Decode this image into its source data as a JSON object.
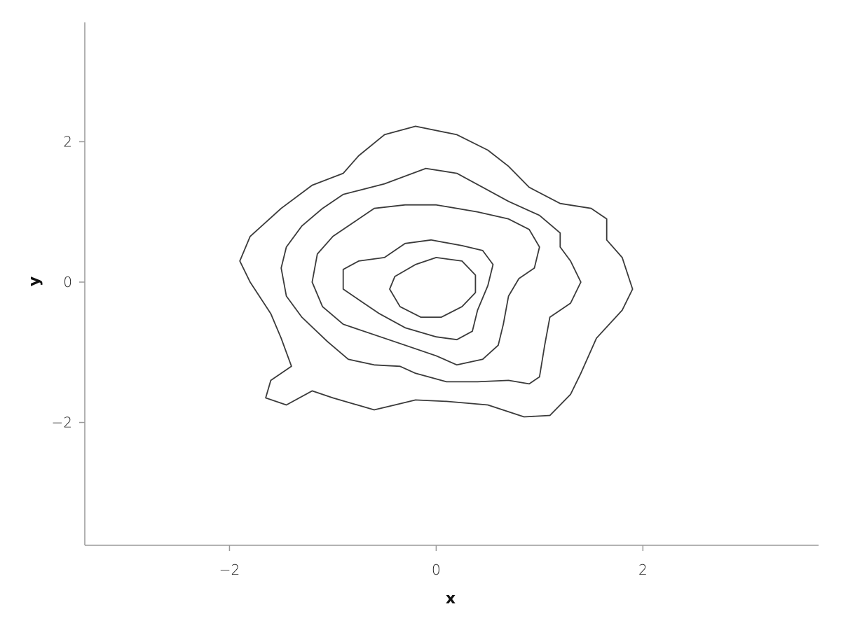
{
  "chart_data": {
    "type": "contour",
    "title": "",
    "xlabel": "x",
    "ylabel": "y",
    "xlim": [
      -3.4,
      3.7
    ],
    "ylim": [
      -3.75,
      3.7
    ],
    "x_ticks": [
      -2,
      0,
      2
    ],
    "x_tick_labels": [
      "−2",
      "0",
      "2"
    ],
    "y_ticks": [
      -2,
      0,
      2
    ],
    "y_tick_labels": [
      "−2",
      "0",
      "2"
    ],
    "grid": false,
    "legend": "none",
    "line_color": "#3a3a3a",
    "contours": [
      {
        "level_index": 1,
        "points": [
          [
            -0.2,
            2.22
          ],
          [
            -0.5,
            2.1
          ],
          [
            -0.75,
            1.8
          ],
          [
            -0.9,
            1.55
          ],
          [
            -1.2,
            1.38
          ],
          [
            -1.5,
            1.05
          ],
          [
            -1.8,
            0.65
          ],
          [
            -1.9,
            0.3
          ],
          [
            -1.8,
            0.0
          ],
          [
            -1.6,
            -0.45
          ],
          [
            -1.5,
            -0.8
          ],
          [
            -1.4,
            -1.2
          ],
          [
            -1.6,
            -1.4
          ],
          [
            -1.65,
            -1.65
          ],
          [
            -1.45,
            -1.75
          ],
          [
            -1.2,
            -1.55
          ],
          [
            -1.0,
            -1.65
          ],
          [
            -0.6,
            -1.82
          ],
          [
            -0.4,
            -1.75
          ],
          [
            -0.2,
            -1.68
          ],
          [
            0.1,
            -1.7
          ],
          [
            0.5,
            -1.75
          ],
          [
            0.85,
            -1.92
          ],
          [
            1.1,
            -1.9
          ],
          [
            1.3,
            -1.6
          ],
          [
            1.4,
            -1.3
          ],
          [
            1.55,
            -0.8
          ],
          [
            1.8,
            -0.4
          ],
          [
            1.9,
            -0.1
          ],
          [
            1.8,
            0.35
          ],
          [
            1.65,
            0.6
          ],
          [
            1.65,
            0.9
          ],
          [
            1.5,
            1.05
          ],
          [
            1.2,
            1.12
          ],
          [
            0.9,
            1.35
          ],
          [
            0.7,
            1.65
          ],
          [
            0.5,
            1.88
          ],
          [
            0.2,
            2.1
          ],
          [
            -0.2,
            2.22
          ]
        ]
      },
      {
        "level_index": 2,
        "points": [
          [
            -0.1,
            1.62
          ],
          [
            -0.5,
            1.4
          ],
          [
            -0.9,
            1.25
          ],
          [
            -1.1,
            1.05
          ],
          [
            -1.3,
            0.8
          ],
          [
            -1.45,
            0.5
          ],
          [
            -1.5,
            0.2
          ],
          [
            -1.45,
            -0.2
          ],
          [
            -1.3,
            -0.5
          ],
          [
            -1.05,
            -0.85
          ],
          [
            -0.85,
            -1.1
          ],
          [
            -0.6,
            -1.18
          ],
          [
            -0.35,
            -1.2
          ],
          [
            -0.2,
            -1.3
          ],
          [
            0.1,
            -1.42
          ],
          [
            0.4,
            -1.42
          ],
          [
            0.7,
            -1.4
          ],
          [
            0.9,
            -1.45
          ],
          [
            1.0,
            -1.35
          ],
          [
            1.05,
            -0.9
          ],
          [
            1.1,
            -0.5
          ],
          [
            1.3,
            -0.3
          ],
          [
            1.4,
            0.0
          ],
          [
            1.3,
            0.3
          ],
          [
            1.2,
            0.5
          ],
          [
            1.2,
            0.7
          ],
          [
            1.0,
            0.95
          ],
          [
            0.7,
            1.15
          ],
          [
            0.45,
            1.35
          ],
          [
            0.2,
            1.55
          ],
          [
            -0.1,
            1.62
          ]
        ]
      },
      {
        "level_index": 3,
        "points": [
          [
            -0.3,
            1.1
          ],
          [
            -0.6,
            1.05
          ],
          [
            -0.8,
            0.85
          ],
          [
            -1.0,
            0.65
          ],
          [
            -1.15,
            0.4
          ],
          [
            -1.2,
            0.0
          ],
          [
            -1.1,
            -0.35
          ],
          [
            -0.9,
            -0.6
          ],
          [
            -0.6,
            -0.75
          ],
          [
            -0.3,
            -0.9
          ],
          [
            0.0,
            -1.05
          ],
          [
            0.2,
            -1.18
          ],
          [
            0.45,
            -1.1
          ],
          [
            0.6,
            -0.9
          ],
          [
            0.65,
            -0.6
          ],
          [
            0.7,
            -0.2
          ],
          [
            0.8,
            0.05
          ],
          [
            0.95,
            0.2
          ],
          [
            1.0,
            0.5
          ],
          [
            0.9,
            0.75
          ],
          [
            0.7,
            0.9
          ],
          [
            0.4,
            1.0
          ],
          [
            0.0,
            1.1
          ],
          [
            -0.3,
            1.1
          ]
        ]
      },
      {
        "level_index": 4,
        "points": [
          [
            -0.05,
            0.6
          ],
          [
            -0.3,
            0.55
          ],
          [
            -0.5,
            0.35
          ],
          [
            -0.75,
            0.3
          ],
          [
            -0.9,
            0.18
          ],
          [
            -0.9,
            -0.1
          ],
          [
            -0.75,
            -0.25
          ],
          [
            -0.55,
            -0.45
          ],
          [
            -0.3,
            -0.65
          ],
          [
            0.0,
            -0.78
          ],
          [
            0.2,
            -0.82
          ],
          [
            0.35,
            -0.7
          ],
          [
            0.4,
            -0.4
          ],
          [
            0.5,
            -0.05
          ],
          [
            0.55,
            0.25
          ],
          [
            0.45,
            0.45
          ],
          [
            0.25,
            0.52
          ],
          [
            -0.05,
            0.6
          ]
        ]
      },
      {
        "level_index": 5,
        "points": [
          [
            0.0,
            0.35
          ],
          [
            -0.2,
            0.25
          ],
          [
            -0.4,
            0.08
          ],
          [
            -0.45,
            -0.1
          ],
          [
            -0.35,
            -0.35
          ],
          [
            -0.15,
            -0.5
          ],
          [
            0.05,
            -0.5
          ],
          [
            0.25,
            -0.35
          ],
          [
            0.38,
            -0.15
          ],
          [
            0.38,
            0.1
          ],
          [
            0.25,
            0.3
          ],
          [
            0.0,
            0.35
          ]
        ]
      }
    ]
  }
}
